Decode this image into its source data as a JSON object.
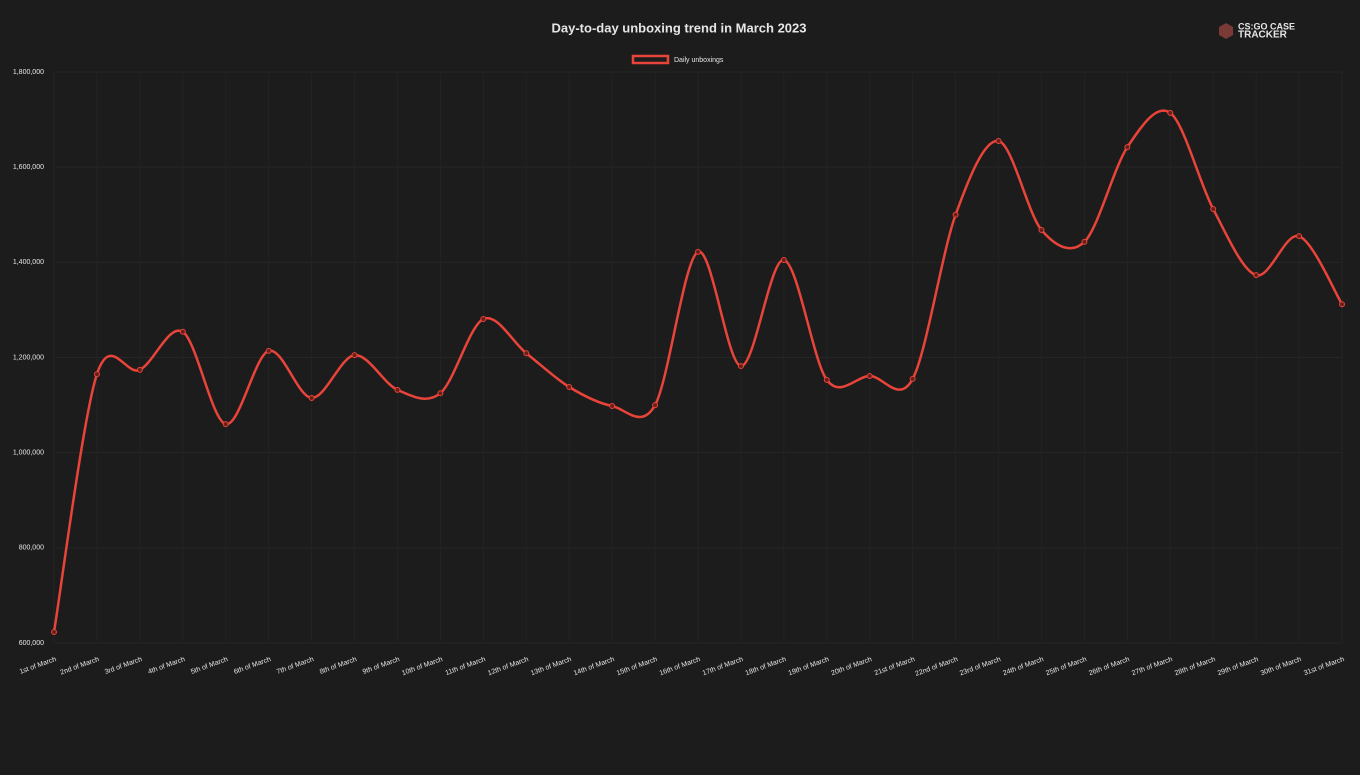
{
  "logo": {
    "line1": "CS:GO CASE",
    "line2": "TRACKER"
  },
  "chart_data": {
    "type": "line",
    "title": "Day-to-day unboxing trend in March 2023",
    "categories": [
      "1st of March",
      "2nd of March",
      "3rd of March",
      "4th of March",
      "5th of March",
      "6th of March",
      "7th of March",
      "8th of March",
      "9th of March",
      "10th of March",
      "11th of March",
      "12th of March",
      "13th of March",
      "14th of March",
      "15th of March",
      "16th of March",
      "17th of March",
      "18th of March",
      "19th of March",
      "20th of March",
      "21st of March",
      "22nd of March",
      "23rd of March",
      "24th of March",
      "25th of March",
      "26th of March",
      "27th of March",
      "28th of March",
      "29th of March",
      "30th of March",
      "31st of March"
    ],
    "series": [
      {
        "name": "Daily unboxings",
        "color": "#e8443a",
        "values": [
          623000,
          1165000,
          1174000,
          1254000,
          1060000,
          1214000,
          1115000,
          1205000,
          1132000,
          1125000,
          1281000,
          1209000,
          1138000,
          1098000,
          1100000,
          1422000,
          1182000,
          1405000,
          1153000,
          1161000,
          1155000,
          1500000,
          1655000,
          1468000,
          1443000,
          1642000,
          1714000,
          1512000,
          1373000,
          1455000,
          1312000
        ]
      }
    ],
    "ylim": [
      600000,
      1800000
    ],
    "yticks": [
      {
        "value": 600000,
        "label": "600,000"
      },
      {
        "value": 800000,
        "label": "800,000"
      },
      {
        "value": 1000000,
        "label": "1,000,000"
      },
      {
        "value": 1200000,
        "label": "1,200,000"
      },
      {
        "value": 1400000,
        "label": "1,400,000"
      },
      {
        "value": 1600000,
        "label": "1,600,000"
      },
      {
        "value": 1800000,
        "label": "1,800,000"
      }
    ],
    "grid": true,
    "legend": "top"
  }
}
